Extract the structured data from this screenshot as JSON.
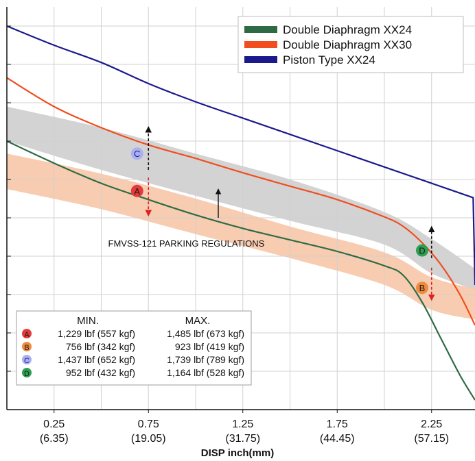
{
  "chart_data": {
    "type": "line",
    "xlabel": "DISP inch(mm)",
    "ylabel": "",
    "xlim": [
      0,
      2.48
    ],
    "ylim": [
      0,
      2100
    ],
    "x_ticks": [
      {
        "value": 0.25,
        "label": "0.25",
        "sublabel": "(6.35)"
      },
      {
        "value": 0.75,
        "label": "0.75",
        "sublabel": "(19.05)"
      },
      {
        "value": 1.25,
        "label": "1.25",
        "sublabel": "(31.75)"
      },
      {
        "value": 1.75,
        "label": "1.75",
        "sublabel": "(44.45)"
      },
      {
        "value": 2.25,
        "label": "2.25",
        "sublabel": "(57.15)"
      }
    ],
    "grid": true,
    "legend_position": "top-right",
    "series": [
      {
        "name": "Double Diaphragm XX24",
        "color": "#2e6b45",
        "points": [
          [
            0,
            1400
          ],
          [
            0.25,
            1285
          ],
          [
            0.5,
            1180
          ],
          [
            0.75,
            1095
          ],
          [
            1.0,
            1015
          ],
          [
            1.25,
            945
          ],
          [
            1.5,
            885
          ],
          [
            1.75,
            825
          ],
          [
            2.0,
            750
          ],
          [
            2.1,
            700
          ],
          [
            2.2,
            560
          ],
          [
            2.3,
            370
          ],
          [
            2.4,
            180
          ],
          [
            2.48,
            50
          ]
        ]
      },
      {
        "name": "Double Diaphragm XX30",
        "color": "#f04e1e",
        "points": [
          [
            0,
            1730
          ],
          [
            0.25,
            1580
          ],
          [
            0.5,
            1470
          ],
          [
            0.75,
            1380
          ],
          [
            1.0,
            1310
          ],
          [
            1.25,
            1235
          ],
          [
            1.5,
            1165
          ],
          [
            1.75,
            1095
          ],
          [
            2.0,
            1005
          ],
          [
            2.1,
            955
          ],
          [
            2.2,
            870
          ],
          [
            2.3,
            755
          ],
          [
            2.4,
            600
          ],
          [
            2.48,
            440
          ]
        ]
      },
      {
        "name": "Piston Type XX24",
        "color": "#1a1a8c",
        "points": [
          [
            0,
            2000
          ],
          [
            0.25,
            1900
          ],
          [
            0.5,
            1810
          ],
          [
            0.75,
            1700
          ],
          [
            1.0,
            1605
          ],
          [
            1.25,
            1520
          ],
          [
            1.5,
            1435
          ],
          [
            1.75,
            1350
          ],
          [
            2.0,
            1265
          ],
          [
            2.25,
            1180
          ],
          [
            2.47,
            1105
          ],
          [
            2.48,
            650
          ]
        ]
      }
    ],
    "bands": [
      {
        "name": "FMVSS-121 PARKING REGULATIONS",
        "color": "#d3d3d3",
        "upper": [
          [
            0,
            1580
          ],
          [
            0.5,
            1470
          ],
          [
            1.0,
            1335
          ],
          [
            1.5,
            1200
          ],
          [
            2.0,
            1030
          ],
          [
            2.25,
            890
          ],
          [
            2.48,
            735
          ]
        ],
        "lower": [
          [
            0,
            1400
          ],
          [
            0.5,
            1250
          ],
          [
            1.0,
            1115
          ],
          [
            1.5,
            985
          ],
          [
            2.0,
            860
          ],
          [
            2.25,
            710
          ],
          [
            2.48,
            625
          ]
        ]
      },
      {
        "name": "",
        "color": "#f7c6a7",
        "upper": [
          [
            0,
            1335
          ],
          [
            0.5,
            1230
          ],
          [
            1.0,
            1100
          ],
          [
            1.5,
            955
          ],
          [
            2.0,
            820
          ],
          [
            2.25,
            690
          ],
          [
            2.48,
            630
          ]
        ],
        "lower": [
          [
            0,
            1150
          ],
          [
            0.5,
            1045
          ],
          [
            1.0,
            915
          ],
          [
            1.5,
            790
          ],
          [
            2.0,
            650
          ],
          [
            2.25,
            520
          ],
          [
            2.48,
            470
          ]
        ]
      }
    ],
    "markers": [
      {
        "label": "A",
        "x": 0.69,
        "y": 1140,
        "color": "#e23b3b",
        "text_color": "#1a1a1a"
      },
      {
        "label": "B",
        "x": 2.2,
        "y": 635,
        "color": "#f08a3c",
        "text_color": "#1a1a1a"
      },
      {
        "label": "C",
        "x": 0.69,
        "y": 1335,
        "color": "#aab0f0",
        "text_color": "#1a1a8c"
      },
      {
        "label": "D",
        "x": 2.2,
        "y": 830,
        "color": "#2e9e52",
        "text_color": "#1a1a1a"
      }
    ],
    "arrows": [
      {
        "x": 0.75,
        "y_from": 1250,
        "y_to": 1475,
        "color": "#111111"
      },
      {
        "x": 0.75,
        "y_from": 1210,
        "y_to": 1010,
        "color": "#e02020"
      },
      {
        "x": 2.25,
        "y_from": 790,
        "y_to": 955,
        "color": "#111111"
      },
      {
        "x": 2.25,
        "y_from": 740,
        "y_to": 570,
        "color": "#e02020"
      },
      {
        "x": 1.12,
        "y_from": 1000,
        "y_to": 1150,
        "color": "#111111"
      }
    ],
    "annotation": {
      "text": "FMVSS-121 PARKING REGULATIONS",
      "x": 1.1,
      "y": 950
    },
    "table": {
      "headers": [
        "MIN.",
        "MAX."
      ],
      "rows": [
        {
          "marker": "A",
          "min": "1,229 lbf (557 kgf)",
          "max": "1,485 lbf (673 kgf)"
        },
        {
          "marker": "B",
          "min": "756 lbf (342 kgf)",
          "max": "923 lbf (419 kgf)"
        },
        {
          "marker": "C",
          "min": "1,437 lbf (652 kgf)",
          "max": "1,739 lbf (789 kgf)"
        },
        {
          "marker": "D",
          "min": "952 lbf (432 kgf)",
          "max": "1,164 lbf (528 kgf)"
        }
      ]
    }
  }
}
